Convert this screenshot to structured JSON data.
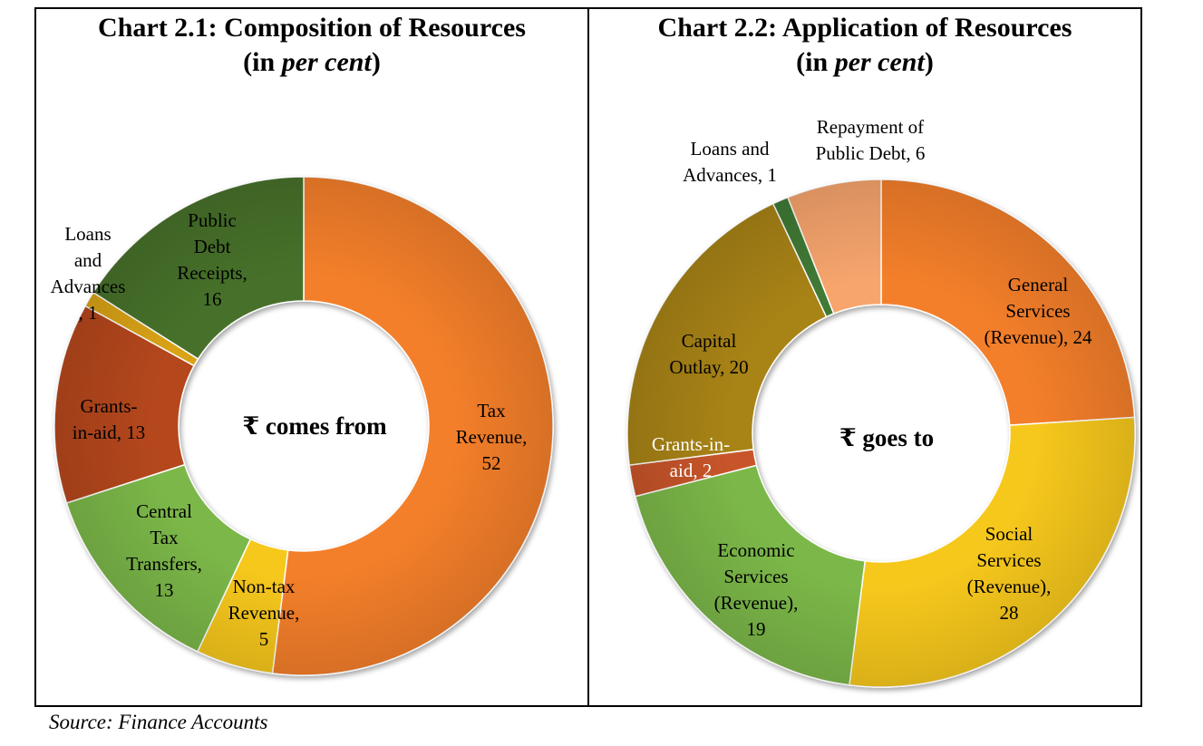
{
  "source": "Source: Finance Accounts",
  "colors": {
    "tax_revenue": "#f47f2a",
    "non_tax": "#f7c81a",
    "central_tax": "#7bb84a",
    "grants_left": "#b5461a",
    "loans_left": "#d9a316",
    "public_debt": "#47712a",
    "general_services": "#f47f2a",
    "social_services": "#f7c81a",
    "economic_services": "#7bb84a",
    "grants_right": "#c8552a",
    "capital_outlay": "#a88318",
    "loans_right": "#3f7a35",
    "repayment": "#f7a56d"
  },
  "chart_data": [
    {
      "type": "pie",
      "donut": true,
      "title_main": "Chart 2.1: Composition of Resources",
      "title_open": "(in ",
      "title_em": "per cent",
      "title_close": ")",
      "center_text": "₹ comes from",
      "slices": [
        {
          "label": "Tax Revenue, 52",
          "value": 52
        },
        {
          "label": "Non-tax Revenue, 5",
          "value": 5
        },
        {
          "label": "Central Tax Transfers, 13",
          "value": 13
        },
        {
          "label": "Grants-in-aid, 13",
          "value": 13
        },
        {
          "label": "Loans and Advances, 1",
          "value": 1
        },
        {
          "label": "Public Debt Receipts, 16",
          "value": 16
        }
      ]
    },
    {
      "type": "pie",
      "donut": true,
      "title_main": "Chart 2.2: Application of Resources",
      "title_open": "(in ",
      "title_em": "per cent",
      "title_close": ")",
      "center_text": "₹ goes to",
      "slices": [
        {
          "label": "General Services (Revenue), 24",
          "value": 24
        },
        {
          "label": "Social Services (Revenue), 28",
          "value": 28
        },
        {
          "label": "Economic Services (Revenue), 19",
          "value": 19
        },
        {
          "label": "Grants-in-aid, 2",
          "value": 2
        },
        {
          "label": "Capital Outlay, 20",
          "value": 20
        },
        {
          "label": "Loans and Advances, 1",
          "value": 1
        },
        {
          "label": "Repayment of Public Debt, 6",
          "value": 6
        }
      ]
    }
  ]
}
